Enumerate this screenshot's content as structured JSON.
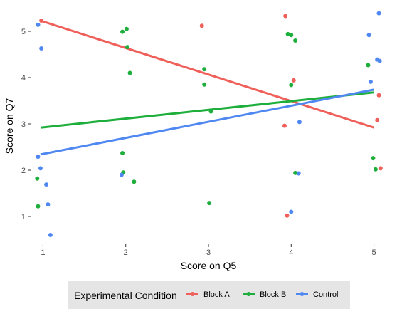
{
  "chart_data": {
    "type": "scatter",
    "xlabel": "Score on Q5",
    "ylabel": "Score on Q7",
    "xlim": [
      0.85,
      5.15
    ],
    "ylim": [
      0.4,
      5.6
    ],
    "x_ticks": [
      1,
      2,
      3,
      4,
      5
    ],
    "y_ticks": [
      1,
      2,
      3,
      4,
      5
    ],
    "grid": false,
    "legend": {
      "title": "Experimental Condition",
      "placement": "bottom"
    },
    "series": [
      {
        "name": "Block A",
        "color": "#f0605b",
        "points": [
          {
            "x": 0.98,
            "y": 5.23
          },
          {
            "x": 2.92,
            "y": 5.12
          },
          {
            "x": 3.93,
            "y": 5.33
          },
          {
            "x": 4.03,
            "y": 3.94
          },
          {
            "x": 3.92,
            "y": 2.96
          },
          {
            "x": 3.95,
            "y": 1.02
          },
          {
            "x": 5.06,
            "y": 3.62
          },
          {
            "x": 5.04,
            "y": 3.08
          },
          {
            "x": 5.08,
            "y": 2.04
          }
        ],
        "trend": {
          "x": [
            0.97,
            5.0
          ],
          "y": [
            5.23,
            2.92
          ]
        }
      },
      {
        "name": "Block B",
        "color": "#1eae3b",
        "points": [
          {
            "x": 1.96,
            "y": 4.99
          },
          {
            "x": 2.01,
            "y": 5.05
          },
          {
            "x": 2.02,
            "y": 4.66
          },
          {
            "x": 2.05,
            "y": 4.1
          },
          {
            "x": 1.96,
            "y": 2.37
          },
          {
            "x": 1.97,
            "y": 1.95
          },
          {
            "x": 2.1,
            "y": 1.75
          },
          {
            "x": 2.95,
            "y": 4.18
          },
          {
            "x": 2.95,
            "y": 3.85
          },
          {
            "x": 3.03,
            "y": 3.27
          },
          {
            "x": 3.01,
            "y": 1.29
          },
          {
            "x": 3.96,
            "y": 4.94
          },
          {
            "x": 4.0,
            "y": 4.92
          },
          {
            "x": 4.05,
            "y": 4.8
          },
          {
            "x": 4.0,
            "y": 3.84
          },
          {
            "x": 4.05,
            "y": 1.94
          },
          {
            "x": 0.93,
            "y": 1.82
          },
          {
            "x": 0.94,
            "y": 1.22
          },
          {
            "x": 4.93,
            "y": 4.27
          },
          {
            "x": 4.99,
            "y": 2.26
          },
          {
            "x": 5.02,
            "y": 2.02
          }
        ],
        "trend": {
          "x": [
            0.97,
            5.0
          ],
          "y": [
            2.92,
            3.68
          ]
        }
      },
      {
        "name": "Control",
        "color": "#5088f2",
        "points": [
          {
            "x": 0.94,
            "y": 5.14
          },
          {
            "x": 0.98,
            "y": 4.63
          },
          {
            "x": 0.94,
            "y": 2.29
          },
          {
            "x": 0.97,
            "y": 2.04
          },
          {
            "x": 1.04,
            "y": 1.69
          },
          {
            "x": 1.06,
            "y": 1.26
          },
          {
            "x": 1.09,
            "y": 0.6
          },
          {
            "x": 1.95,
            "y": 1.9
          },
          {
            "x": 4.1,
            "y": 3.04
          },
          {
            "x": 4.09,
            "y": 1.93
          },
          {
            "x": 4.0,
            "y": 1.1
          },
          {
            "x": 4.94,
            "y": 4.92
          },
          {
            "x": 5.06,
            "y": 5.39
          },
          {
            "x": 5.04,
            "y": 4.39
          },
          {
            "x": 5.07,
            "y": 4.36
          },
          {
            "x": 4.96,
            "y": 3.91
          }
        ],
        "trend": {
          "x": [
            0.97,
            5.0
          ],
          "y": [
            2.34,
            3.74
          ]
        }
      }
    ]
  }
}
